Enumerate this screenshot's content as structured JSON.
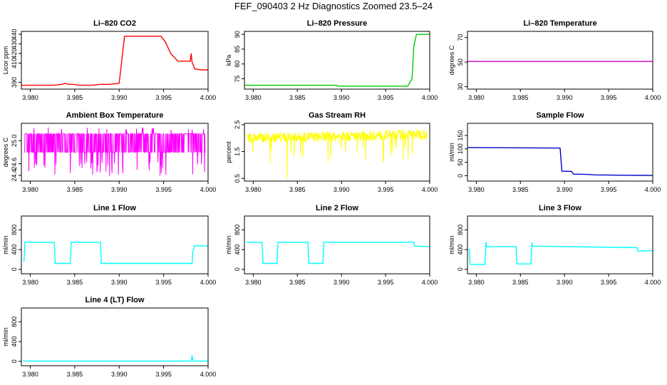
{
  "page": {
    "title": "FEF_090403  2 Hz Diagnostics Zoomed 23.5–24"
  },
  "chart_data": [
    {
      "id": "co2",
      "type": "line",
      "title": "Li–820 CO2",
      "xlabel": "",
      "ylabel": "Licor ppm",
      "color": "#ff0000",
      "xlim": [
        3.979,
        4.0
      ],
      "ylim": [
        383,
        443
      ],
      "xticks": [
        "3.980",
        "3.985",
        "3.990",
        "3.995",
        "4.000"
      ],
      "yticks": [
        "390",
        "410",
        "420",
        "430",
        "440"
      ],
      "series": [
        {
          "x": [
            3.979,
            3.9826,
            3.9836,
            3.9839,
            3.9843,
            3.9848,
            3.9856,
            3.9869,
            3.9879,
            3.9889,
            3.99,
            3.9902,
            3.9906,
            3.9923,
            3.9947,
            3.9952,
            3.9958,
            3.9966,
            3.9975,
            3.998,
            3.9981,
            3.9982,
            3.9985,
            3.9993,
            4.0
          ],
          "y": [
            387,
            387,
            388,
            389,
            388,
            388,
            387,
            387,
            388,
            388,
            389,
            405,
            438,
            438,
            438,
            432,
            420,
            412,
            412,
            412,
            420,
            411,
            404,
            403,
            403
          ]
        }
      ]
    },
    {
      "id": "pressure",
      "type": "line",
      "title": "Li–820 Pressure",
      "xlabel": "",
      "ylabel": "kPa",
      "color": "#00cd00",
      "xlim": [
        3.979,
        4.0
      ],
      "ylim": [
        71.5,
        91
      ],
      "xticks": [
        "3.980",
        "3.985",
        "3.990",
        "3.995",
        "4.000"
      ],
      "yticks": [
        "75",
        "80",
        "85",
        "90"
      ],
      "series": [
        {
          "x": [
            3.979,
            3.9894,
            3.9896,
            3.9975,
            3.998,
            3.9982,
            3.9985,
            4.0
          ],
          "y": [
            72.8,
            72.8,
            72.5,
            72.5,
            75,
            86,
            90,
            90
          ]
        }
      ]
    },
    {
      "id": "temperature",
      "type": "line",
      "title": "Li–820 Temperature",
      "xlabel": "",
      "ylabel": "degrees C",
      "color": "#cc00cc",
      "xlim": [
        3.979,
        4.0
      ],
      "ylim": [
        28,
        75
      ],
      "xticks": [
        "3.980",
        "3.985",
        "3.990",
        "3.995",
        "4.000"
      ],
      "yticks": [
        "30",
        "50",
        "70"
      ],
      "series": [
        {
          "x": [
            3.979,
            4.0
          ],
          "y": [
            50.5,
            50.5
          ]
        }
      ]
    },
    {
      "id": "ambient",
      "type": "line",
      "title": "Ambient Box Temperature",
      "xlabel": "",
      "ylabel": "degrees C",
      "color": "#ff00ff",
      "xlim": [
        3.979,
        4.0
      ],
      "ylim": [
        24.3,
        25.3
      ],
      "xticks": [
        "3.980",
        "3.985",
        "3.990",
        "3.995",
        "4.000"
      ],
      "yticks": [
        "24.4",
        "24.6",
        "25.0"
      ],
      "series": [
        {
          "x": [
            3.979,
            4.0
          ],
          "y": [
            24.95,
            24.95
          ]
        }
      ],
      "noise": {
        "low": 24.8,
        "high": 25.12,
        "spike_low": 24.38,
        "spike_high": 25.23
      }
    },
    {
      "id": "rh",
      "type": "line",
      "title": "Gas Stream RH",
      "xlabel": "",
      "ylabel": "percent",
      "color": "#ffff00",
      "xlim": [
        3.979,
        4.0
      ],
      "ylim": [
        0.4,
        2.55
      ],
      "xticks": [
        "3.980",
        "3.985",
        "3.990",
        "3.995",
        "4.000"
      ],
      "yticks": [
        "0.5",
        "1.5",
        "2.5"
      ],
      "series": [
        {
          "x": [
            3.979,
            3.99,
            4.0
          ],
          "y": [
            2.0,
            2.05,
            2.15
          ]
        }
      ],
      "noise": {
        "low": -0.18,
        "high": 0.2,
        "spike_low": 0.5,
        "spike_high": 2.42
      }
    },
    {
      "id": "sample",
      "type": "line",
      "title": "Sample Flow",
      "xlabel": "",
      "ylabel": "ml/min",
      "color": "#0000cc",
      "xlim": [
        3.979,
        4.0
      ],
      "ylim": [
        -20,
        195
      ],
      "xticks": [
        "3.980",
        "3.985",
        "3.990",
        "3.995",
        "4.000"
      ],
      "yticks": [
        "0",
        "50",
        "100",
        "150"
      ],
      "series": [
        {
          "x": [
            3.979,
            3.9895,
            3.9897,
            3.9908,
            3.991,
            3.9925,
            3.9935,
            3.996,
            4.0
          ],
          "y": [
            105,
            103,
            17,
            16,
            6,
            5,
            3,
            2,
            1
          ]
        }
      ]
    },
    {
      "id": "line1",
      "type": "line",
      "title": "Line 1 Flow",
      "xlabel": "",
      "ylabel": "ml/min",
      "color": "#00ffff",
      "xlim": [
        3.979,
        4.0
      ],
      "ylim": [
        -90,
        1080
      ],
      "xticks": [
        "3.980",
        "3.985",
        "3.990",
        "3.995",
        "4.000"
      ],
      "yticks": [
        "0",
        "400",
        "800"
      ],
      "series": [
        {
          "x": [
            3.9793,
            3.9794,
            3.9827,
            3.9828,
            3.9845,
            3.9846,
            3.9879,
            3.988,
            3.9982,
            3.9983,
            3.9985,
            4.0
          ],
          "y": [
            150,
            550,
            550,
            120,
            120,
            550,
            550,
            120,
            120,
            380,
            480,
            470
          ]
        }
      ]
    },
    {
      "id": "line2",
      "type": "line",
      "title": "Line 2 Flow",
      "xlabel": "",
      "ylabel": "ml/min",
      "color": "#00ffff",
      "xlim": [
        3.979,
        4.0
      ],
      "ylim": [
        -90,
        1080
      ],
      "xticks": [
        "3.980",
        "3.985",
        "3.990",
        "3.995",
        "4.000"
      ],
      "yticks": [
        "0",
        "400",
        "800"
      ],
      "series": [
        {
          "x": [
            3.9792,
            3.981,
            3.9811,
            3.9827,
            3.9828,
            3.9862,
            3.9863,
            3.9879,
            3.988,
            3.9982,
            3.9983,
            4.0
          ],
          "y": [
            550,
            550,
            120,
            120,
            550,
            550,
            120,
            120,
            550,
            550,
            470,
            460
          ]
        }
      ]
    },
    {
      "id": "line3",
      "type": "line",
      "title": "Line 3 Flow",
      "xlabel": "",
      "ylabel": "ml/min",
      "color": "#00ffff",
      "xlim": [
        3.979,
        4.0
      ],
      "ylim": [
        -90,
        1080
      ],
      "xticks": [
        "3.980",
        "3.985",
        "3.990",
        "3.995",
        "4.000"
      ],
      "yticks": [
        "0",
        "400",
        "800"
      ],
      "series": [
        {
          "x": [
            3.9792,
            3.9793,
            3.981,
            3.9811,
            3.9812,
            3.9845,
            3.9846,
            3.9862,
            3.9863,
            3.9864,
            3.99,
            3.9982,
            3.9983,
            4.0
          ],
          "y": [
            420,
            100,
            100,
            550,
            460,
            460,
            110,
            110,
            540,
            470,
            460,
            440,
            370,
            380
          ]
        }
      ]
    },
    {
      "id": "line4",
      "type": "line",
      "title": "Line 4 (LT) Flow",
      "xlabel": "",
      "ylabel": "ml/min",
      "color": "#00ffff",
      "xlim": [
        3.979,
        4.0
      ],
      "ylim": [
        -90,
        1080
      ],
      "xticks": [
        "3.980",
        "3.985",
        "3.990",
        "3.995",
        "4.000"
      ],
      "yticks": [
        "0",
        "400",
        "800"
      ],
      "series": [
        {
          "x": [
            3.9792,
            3.9981,
            3.9982,
            3.9983,
            3.9984,
            4.0
          ],
          "y": [
            5,
            5,
            120,
            10,
            5,
            5
          ]
        }
      ]
    }
  ]
}
